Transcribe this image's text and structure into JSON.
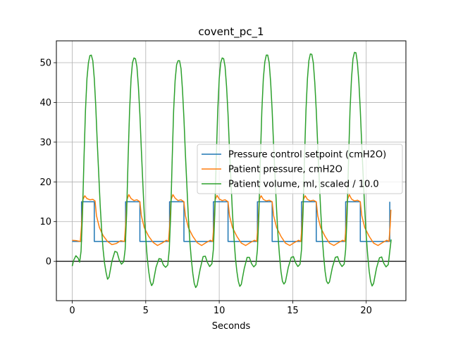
{
  "chart_data": {
    "type": "line",
    "title": "covent_pc_1",
    "xlabel": "Seconds",
    "ylabel": "",
    "xlim": [
      -1.08,
      22.7
    ],
    "ylim": [
      -9.9,
      55.5
    ],
    "xticks": [
      0,
      5,
      10,
      15,
      20
    ],
    "yticks": [
      0,
      10,
      20,
      30,
      40,
      50
    ],
    "grid": true,
    "legend_position": "center-right",
    "hline_at_zero": true,
    "series": [
      {
        "name": "Pressure control setpoint (cmH2O)",
        "color": "#1f77b4",
        "step": true,
        "x": [
          0,
          0.63,
          1.5,
          3.63,
          4.6,
          6.62,
          7.6,
          9.6,
          10.6,
          12.6,
          13.6,
          15.6,
          16.6,
          18.6,
          19.6,
          21.6
        ],
        "y": [
          5,
          15,
          5,
          15,
          5,
          15,
          5,
          15,
          5,
          15,
          5,
          15,
          5,
          15,
          5,
          15
        ]
      },
      {
        "name": "Patient pressure, cmH2O",
        "color": "#ff7f0e",
        "x": [
          0.0,
          0.3,
          0.55,
          0.63,
          0.72,
          0.85,
          1.0,
          1.2,
          1.4,
          1.55,
          1.65,
          1.85,
          2.1,
          2.4,
          2.7,
          3.0,
          3.3,
          3.55,
          3.63,
          3.72,
          3.85,
          4.0,
          4.2,
          4.4,
          4.6,
          4.7,
          4.9,
          5.2,
          5.5,
          5.8,
          6.1,
          6.4,
          6.55,
          6.63,
          6.72,
          6.85,
          7.0,
          7.2,
          7.4,
          7.6,
          7.7,
          7.9,
          8.2,
          8.5,
          8.8,
          9.1,
          9.4,
          9.55,
          9.63,
          9.72,
          9.85,
          10.0,
          10.2,
          10.4,
          10.6,
          10.7,
          10.9,
          11.2,
          11.5,
          11.8,
          12.1,
          12.4,
          12.55,
          12.63,
          12.72,
          12.85,
          13.0,
          13.2,
          13.4,
          13.6,
          13.7,
          13.9,
          14.2,
          14.5,
          14.8,
          15.1,
          15.4,
          15.55,
          15.63,
          15.72,
          15.85,
          16.0,
          16.2,
          16.4,
          16.6,
          16.7,
          16.9,
          17.2,
          17.5,
          17.8,
          18.1,
          18.4,
          18.55,
          18.63,
          18.72,
          18.85,
          19.0,
          19.2,
          19.4,
          19.6,
          19.7,
          19.9,
          20.2,
          20.5,
          20.8,
          21.1,
          21.4,
          21.55,
          21.63,
          21.68
        ],
        "y": [
          5.3,
          5.2,
          5.0,
          9,
          15.5,
          16.5,
          15.8,
          15.5,
          15.6,
          15.2,
          11.5,
          8.5,
          6.5,
          5.0,
          4.2,
          4.5,
          5.2,
          5.0,
          9,
          15.5,
          16.8,
          15.8,
          15.3,
          15.5,
          15.0,
          11.5,
          8.5,
          6.3,
          4.8,
          4.0,
          4.6,
          5.3,
          5.0,
          9,
          15.5,
          16.8,
          15.9,
          15.3,
          15.5,
          15.0,
          11.5,
          8.5,
          6.3,
          4.7,
          4.0,
          4.7,
          5.3,
          5.0,
          9,
          15.5,
          16.6,
          15.7,
          15.3,
          15.5,
          15.0,
          11.5,
          8.5,
          6.3,
          4.6,
          4.0,
          4.7,
          5.3,
          5.0,
          9,
          15.5,
          16.5,
          15.6,
          15.2,
          15.4,
          15.0,
          11.5,
          8.5,
          6.3,
          4.6,
          4.0,
          4.7,
          5.3,
          5.0,
          9,
          15.5,
          16.5,
          15.6,
          15.2,
          15.4,
          15.0,
          11.5,
          8.5,
          6.3,
          4.6,
          4.0,
          4.7,
          5.3,
          5.0,
          9,
          15.5,
          16.8,
          15.7,
          15.2,
          15.4,
          15.0,
          11.5,
          8.5,
          6.3,
          4.6,
          4.0,
          4.7,
          5.3,
          5.0,
          9,
          13
        ]
      },
      {
        "name": "Patient volume, ml, scaled / 10.0",
        "color": "#2ca02c",
        "x": [
          0.0,
          0.1,
          0.25,
          0.4,
          0.5,
          0.6,
          0.7,
          0.8,
          0.9,
          1.0,
          1.1,
          1.2,
          1.3,
          1.4,
          1.5,
          1.6,
          1.7,
          1.8,
          1.9,
          2.0,
          2.1,
          2.2,
          2.3,
          2.4,
          2.5,
          2.7,
          2.9,
          3.05,
          3.2,
          3.35,
          3.5,
          3.6,
          3.7,
          3.8,
          3.9,
          4.0,
          4.1,
          4.2,
          4.3,
          4.4,
          4.5,
          4.6,
          4.7,
          4.8,
          4.9,
          5.0,
          5.1,
          5.2,
          5.3,
          5.4,
          5.5,
          5.7,
          5.9,
          6.05,
          6.2,
          6.35,
          6.5,
          6.6,
          6.7,
          6.8,
          6.9,
          7.0,
          7.1,
          7.2,
          7.3,
          7.4,
          7.5,
          7.6,
          7.7,
          7.8,
          7.9,
          8.0,
          8.1,
          8.2,
          8.3,
          8.4,
          8.5,
          8.7,
          8.9,
          9.05,
          9.2,
          9.35,
          9.5,
          9.6,
          9.7,
          9.8,
          9.9,
          10.0,
          10.1,
          10.2,
          10.3,
          10.4,
          10.5,
          10.6,
          10.7,
          10.8,
          10.9,
          11.0,
          11.1,
          11.2,
          11.3,
          11.4,
          11.5,
          11.7,
          11.9,
          12.05,
          12.2,
          12.35,
          12.5,
          12.6,
          12.7,
          12.8,
          12.9,
          13.0,
          13.1,
          13.2,
          13.3,
          13.4,
          13.5,
          13.6,
          13.7,
          13.8,
          13.9,
          14.0,
          14.1,
          14.2,
          14.3,
          14.4,
          14.5,
          14.7,
          14.9,
          15.05,
          15.2,
          15.35,
          15.5,
          15.6,
          15.7,
          15.8,
          15.9,
          16.0,
          16.1,
          16.2,
          16.3,
          16.4,
          16.5,
          16.6,
          16.7,
          16.8,
          16.9,
          17.0,
          17.1,
          17.2,
          17.3,
          17.4,
          17.5,
          17.7,
          17.9,
          18.05,
          18.2,
          18.35,
          18.5,
          18.6,
          18.7,
          18.8,
          18.9,
          19.0,
          19.1,
          19.2,
          19.3,
          19.4,
          19.5,
          19.6,
          19.7,
          19.8,
          19.9,
          20.0,
          20.1,
          20.2,
          20.3,
          20.4,
          20.5,
          20.7,
          20.9,
          21.05,
          21.2,
          21.35,
          21.5,
          21.6,
          21.7
        ],
        "y": [
          -1.2,
          0.3,
          1.4,
          0.8,
          -0.2,
          2.5,
          12,
          26,
          38,
          46,
          50,
          51.8,
          51.9,
          50.5,
          46,
          39,
          30,
          22,
          14,
          8,
          3,
          -0.5,
          -2.8,
          -4.5,
          -4.0,
          0.0,
          2.5,
          2.3,
          0.3,
          -0.7,
          -0.1,
          3,
          12,
          26,
          38,
          46,
          50,
          51.2,
          51.0,
          49,
          44,
          37,
          28,
          20,
          12,
          6,
          1,
          -2.5,
          -5,
          -6.1,
          -5.5,
          -1.5,
          0.7,
          0.6,
          -0.9,
          -1.5,
          -0.9,
          3,
          12,
          26,
          38,
          45.5,
          49.5,
          50.5,
          50.5,
          48.5,
          43,
          36,
          27,
          19,
          11,
          5,
          0.5,
          -3,
          -5.5,
          -6.6,
          -6.0,
          -2.0,
          1.2,
          1.3,
          -0.3,
          -1.3,
          -0.6,
          3,
          12,
          26,
          38,
          46,
          50,
          51.2,
          51.0,
          49,
          44,
          37,
          28,
          20,
          12,
          6,
          1,
          -2.5,
          -5,
          -6.3,
          -5.8,
          -1.8,
          1.0,
          1.0,
          -0.6,
          -1.4,
          -0.8,
          3,
          12,
          26,
          38,
          46,
          50.2,
          51.9,
          51.9,
          50,
          45,
          38,
          29,
          21,
          13,
          6.5,
          1.5,
          -2.5,
          -5,
          -5.7,
          -5.2,
          -1.5,
          1.0,
          1.2,
          -0.4,
          -1.3,
          -0.7,
          3,
          12,
          26,
          38,
          46,
          50.5,
          52.2,
          52.1,
          50,
          45,
          38,
          29,
          21,
          13,
          6.5,
          1.5,
          -2.5,
          -5,
          -5.6,
          -5.2,
          -1.5,
          1.0,
          1.2,
          -0.4,
          -1.3,
          -0.7,
          3,
          12,
          26,
          38,
          46,
          51,
          52.6,
          52.5,
          50,
          45,
          38,
          29,
          21,
          13,
          6.5,
          1.5,
          -2.5,
          -5,
          -6.2,
          -5.6,
          -1.7,
          0.9,
          1.1,
          -0.5,
          -1.4,
          -0.8,
          2.5,
          5.5
        ]
      }
    ]
  }
}
